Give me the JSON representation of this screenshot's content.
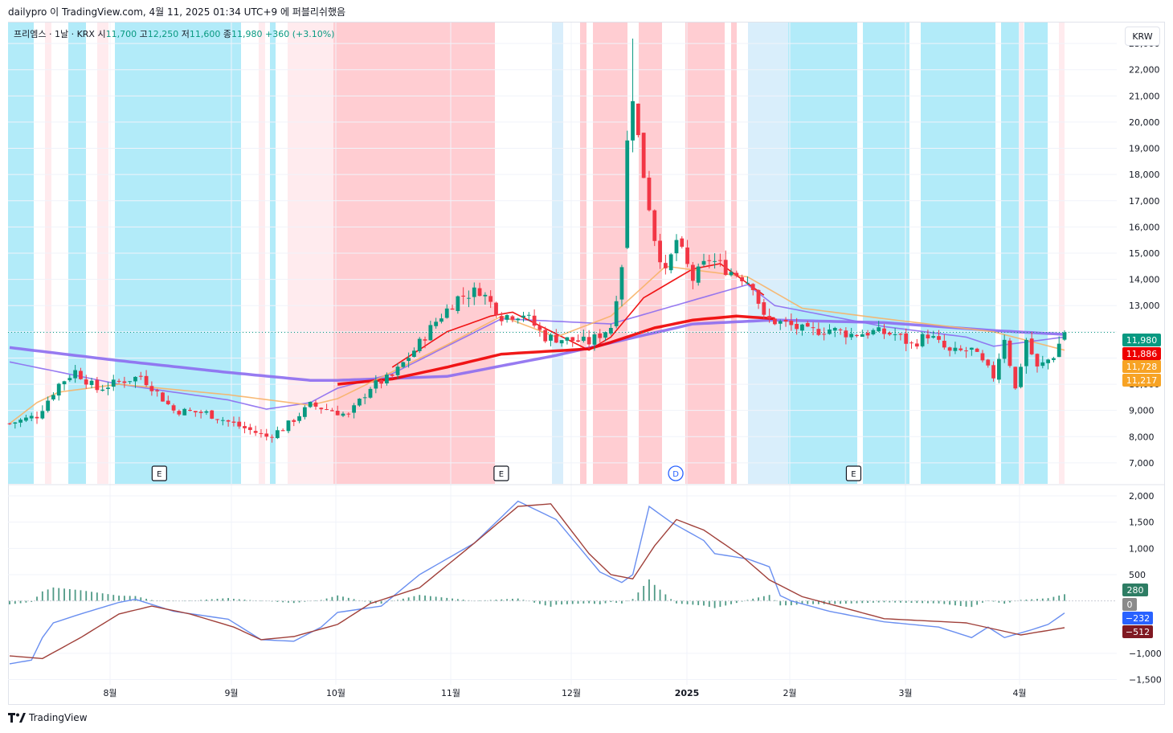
{
  "header": {
    "caption": "dailypro 이 TradingView.com, 4월 11, 2025 01:34 UTC+9 에 퍼블리쉬했음"
  },
  "legend": {
    "symbol": "프리엠스 · 1날 · KRX",
    "o_label": "시",
    "o_value": "11,700",
    "h_label": "고",
    "h_value": "12,250",
    "l_label": "저",
    "l_value": "11,600",
    "c_label": "종",
    "c_value": "11,980",
    "change": "+360 (+3.10%)"
  },
  "currency": "KRW",
  "footer": {
    "brand": "TradingView"
  },
  "colors": {
    "up": "#089981",
    "down": "#f23645",
    "bg_blue": "#b2ebf9",
    "bg_blue_light": "#d9eefb",
    "bg_red": "#ffcdd2",
    "bg_red_light": "#ffebee",
    "ma_purple": "#8c6df0",
    "ma_red": "#ee0000",
    "ma_orange": "#f7b267",
    "macd_line": "#6a8ff0",
    "signal_line": "#a0403a",
    "hist": "#4f9a86"
  },
  "chart_data": [
    {
      "type": "candlestick",
      "panel": "price",
      "y_ticks": [
        7000,
        8000,
        9000,
        10000,
        11000,
        12000,
        13000,
        14000,
        15000,
        16000,
        17000,
        18000,
        19000,
        20000,
        21000,
        22000,
        23000
      ],
      "y_tick_labels": [
        "7,000",
        "8,000",
        "9,000",
        "10,000",
        "",
        "",
        "13,000",
        "14,000",
        "15,000",
        "16,000",
        "17,000",
        "18,000",
        "19,000",
        "20,000",
        "21,000",
        "22,000",
        "23,000"
      ],
      "ylim": [
        6200,
        23800
      ],
      "x_labels": [
        {
          "label": "8월",
          "date": "2024-08-01"
        },
        {
          "label": "9월",
          "date": "2024-09-02"
        },
        {
          "label": "10월",
          "date": "2024-10-02"
        },
        {
          "label": "11월",
          "date": "2024-11-01"
        },
        {
          "label": "12월",
          "date": "2024-12-02"
        },
        {
          "label": "2025",
          "date": "2025-01-02"
        },
        {
          "label": "2월",
          "date": "2025-02-03"
        },
        {
          "label": "3월",
          "date": "2025-03-04"
        },
        {
          "label": "4월",
          "date": "2025-04-01"
        }
      ],
      "candle_path_close": [
        [
          0,
          8500
        ],
        [
          5,
          8800
        ],
        [
          9,
          10000
        ],
        [
          12,
          10500
        ],
        [
          16,
          9800
        ],
        [
          20,
          10100
        ],
        [
          24,
          10300
        ],
        [
          26,
          9900
        ],
        [
          30,
          9000
        ],
        [
          36,
          8900
        ],
        [
          42,
          8400
        ],
        [
          47,
          8000
        ],
        [
          50,
          8300
        ],
        [
          55,
          9200
        ],
        [
          59,
          9000
        ],
        [
          62,
          8800
        ],
        [
          66,
          9900
        ],
        [
          70,
          10300
        ],
        [
          74,
          11300
        ],
        [
          78,
          12400
        ],
        [
          82,
          13300
        ],
        [
          86,
          13600
        ],
        [
          90,
          12600
        ],
        [
          94,
          12700
        ],
        [
          98,
          11800
        ],
        [
          102,
          11700
        ],
        [
          106,
          11600
        ],
        [
          110,
          12200
        ],
        [
          112,
          14600
        ],
        [
          114,
          20800
        ],
        [
          116,
          18000
        ],
        [
          118,
          15600
        ],
        [
          120,
          14200
        ],
        [
          122,
          15500
        ],
        [
          125,
          14000
        ],
        [
          128,
          14800
        ],
        [
          131,
          14400
        ],
        [
          134,
          14100
        ],
        [
          136,
          13800
        ],
        [
          138,
          12500
        ],
        [
          142,
          12300
        ],
        [
          146,
          12000
        ],
        [
          150,
          12100
        ],
        [
          154,
          11900
        ],
        [
          158,
          12000
        ],
        [
          162,
          11900
        ],
        [
          165,
          11500
        ],
        [
          168,
          11900
        ],
        [
          172,
          11200
        ],
        [
          176,
          11300
        ],
        [
          180,
          10300
        ],
        [
          182,
          11800
        ],
        [
          184,
          9800
        ],
        [
          186,
          11700
        ],
        [
          188,
          10600
        ],
        [
          191,
          11100
        ],
        [
          193,
          11980
        ]
      ],
      "series": [
        {
          "name": "",
          "color": "purple-thick",
          "points": [
            [
              0,
              11400
            ],
            [
              20,
              10900
            ],
            [
              40,
              10450
            ],
            [
              55,
              10150
            ],
            [
              60,
              10150
            ],
            [
              80,
              10300
            ],
            [
              100,
              11100
            ],
            [
              125,
              12300
            ],
            [
              140,
              12450
            ],
            [
              160,
              12350
            ],
            [
              180,
              12050
            ],
            [
              193,
              11900
            ]
          ]
        },
        {
          "name": "",
          "color": "purple-thin",
          "points": [
            [
              0,
              10850
            ],
            [
              20,
              10000
            ],
            [
              40,
              9400
            ],
            [
              47,
              9050
            ],
            [
              55,
              9300
            ],
            [
              60,
              9850
            ],
            [
              70,
              10400
            ],
            [
              90,
              12500
            ],
            [
              110,
              12300
            ],
            [
              135,
              13800
            ],
            [
              140,
              13000
            ],
            [
              160,
              12200
            ],
            [
              175,
              11800
            ],
            [
              180,
              11450
            ],
            [
              193,
              11800
            ]
          ]
        },
        {
          "name": "",
          "color": "red-thick",
          "points": [
            [
              60,
              10000
            ],
            [
              70,
              10200
            ],
            [
              80,
              10650
            ],
            [
              90,
              11150
            ],
            [
              106,
              11350
            ],
            [
              110,
              11600
            ],
            [
              118,
              12150
            ],
            [
              125,
              12450
            ],
            [
              133,
              12600
            ],
            [
              140,
              12500
            ]
          ]
        },
        {
          "name": "",
          "color": "red-thin",
          "points": [
            [
              70,
              10650
            ],
            [
              80,
              12000
            ],
            [
              88,
              12600
            ],
            [
              92,
              12750
            ],
            [
              106,
              11300
            ],
            [
              110,
              11800
            ],
            [
              116,
              13300
            ],
            [
              125,
              14400
            ],
            [
              130,
              14600
            ],
            [
              138,
              13400
            ]
          ]
        },
        {
          "name": "",
          "color": "orange",
          "points": [
            [
              0,
              8500
            ],
            [
              5,
              9300
            ],
            [
              9,
              9700
            ],
            [
              20,
              10000
            ],
            [
              40,
              9600
            ],
            [
              55,
              9200
            ],
            [
              60,
              9450
            ],
            [
              80,
              11500
            ],
            [
              90,
              12600
            ],
            [
              100,
              11800
            ],
            [
              110,
              12600
            ],
            [
              120,
              14500
            ],
            [
              135,
              14100
            ],
            [
              145,
              12900
            ],
            [
              160,
              12500
            ],
            [
              180,
              12000
            ],
            [
              193,
              11300
            ]
          ]
        }
      ],
      "price_tags": [
        {
          "value": "11,980",
          "color": "#089981"
        },
        {
          "value": "11,886",
          "color": "#ee0000"
        },
        {
          "value": "11,728",
          "color": "#f7a325"
        },
        {
          "value": "11,217",
          "color": "#f7a325"
        }
      ],
      "event_markers": [
        {
          "label": "E",
          "date": "2024-08-14"
        },
        {
          "label": "E",
          "date": "2024-11-14"
        },
        {
          "label": "D",
          "date": "2024-12-30"
        },
        {
          "label": "E",
          "date": "2025-02-19"
        }
      ]
    },
    {
      "type": "macd",
      "panel": "indicator",
      "y_ticks": [
        -1500,
        -1000,
        500,
        1000,
        1500,
        2000
      ],
      "y_tick_labels": [
        "−1,500",
        "−1,000",
        "500",
        "1,000",
        "1,500",
        "2,000"
      ],
      "ylim": [
        -1600,
        2200
      ],
      "macd_points": [
        [
          0,
          -1200
        ],
        [
          4,
          -1130
        ],
        [
          6,
          -700
        ],
        [
          8,
          -420
        ],
        [
          13,
          -250
        ],
        [
          20,
          -30
        ],
        [
          23,
          30
        ],
        [
          30,
          -200
        ],
        [
          40,
          -350
        ],
        [
          46,
          -740
        ],
        [
          52,
          -770
        ],
        [
          57,
          -500
        ],
        [
          60,
          -220
        ],
        [
          68,
          -100
        ],
        [
          75,
          500
        ],
        [
          85,
          1100
        ],
        [
          93,
          1900
        ],
        [
          100,
          1550
        ],
        [
          108,
          550
        ],
        [
          112,
          350
        ],
        [
          114,
          500
        ],
        [
          117,
          1800
        ],
        [
          121,
          1500
        ],
        [
          127,
          1150
        ],
        [
          129,
          900
        ],
        [
          135,
          800
        ],
        [
          139,
          650
        ],
        [
          141,
          100
        ],
        [
          143,
          0
        ],
        [
          150,
          -200
        ],
        [
          160,
          -400
        ],
        [
          170,
          -500
        ],
        [
          176,
          -700
        ],
        [
          179,
          -500
        ],
        [
          182,
          -700
        ],
        [
          187,
          -550
        ],
        [
          190,
          -450
        ],
        [
          193,
          -232
        ]
      ],
      "signal_points": [
        [
          0,
          -1050
        ],
        [
          6,
          -1100
        ],
        [
          13,
          -700
        ],
        [
          20,
          -250
        ],
        [
          26,
          -100
        ],
        [
          33,
          -250
        ],
        [
          41,
          -500
        ],
        [
          46,
          -740
        ],
        [
          52,
          -680
        ],
        [
          60,
          -450
        ],
        [
          66,
          -50
        ],
        [
          75,
          250
        ],
        [
          85,
          1100
        ],
        [
          93,
          1800
        ],
        [
          99,
          1850
        ],
        [
          106,
          900
        ],
        [
          110,
          500
        ],
        [
          114,
          420
        ],
        [
          118,
          1050
        ],
        [
          122,
          1550
        ],
        [
          127,
          1350
        ],
        [
          134,
          850
        ],
        [
          139,
          400
        ],
        [
          145,
          80
        ],
        [
          160,
          -340
        ],
        [
          175,
          -420
        ],
        [
          185,
          -650
        ],
        [
          193,
          -512
        ]
      ],
      "value_tags": [
        {
          "value": "280",
          "color": "#2e7d64"
        },
        {
          "value": "0",
          "color": "#8a8a8a"
        },
        {
          "value": "−232",
          "color": "#2962ff"
        },
        {
          "value": "−512",
          "color": "#801922"
        }
      ]
    }
  ]
}
